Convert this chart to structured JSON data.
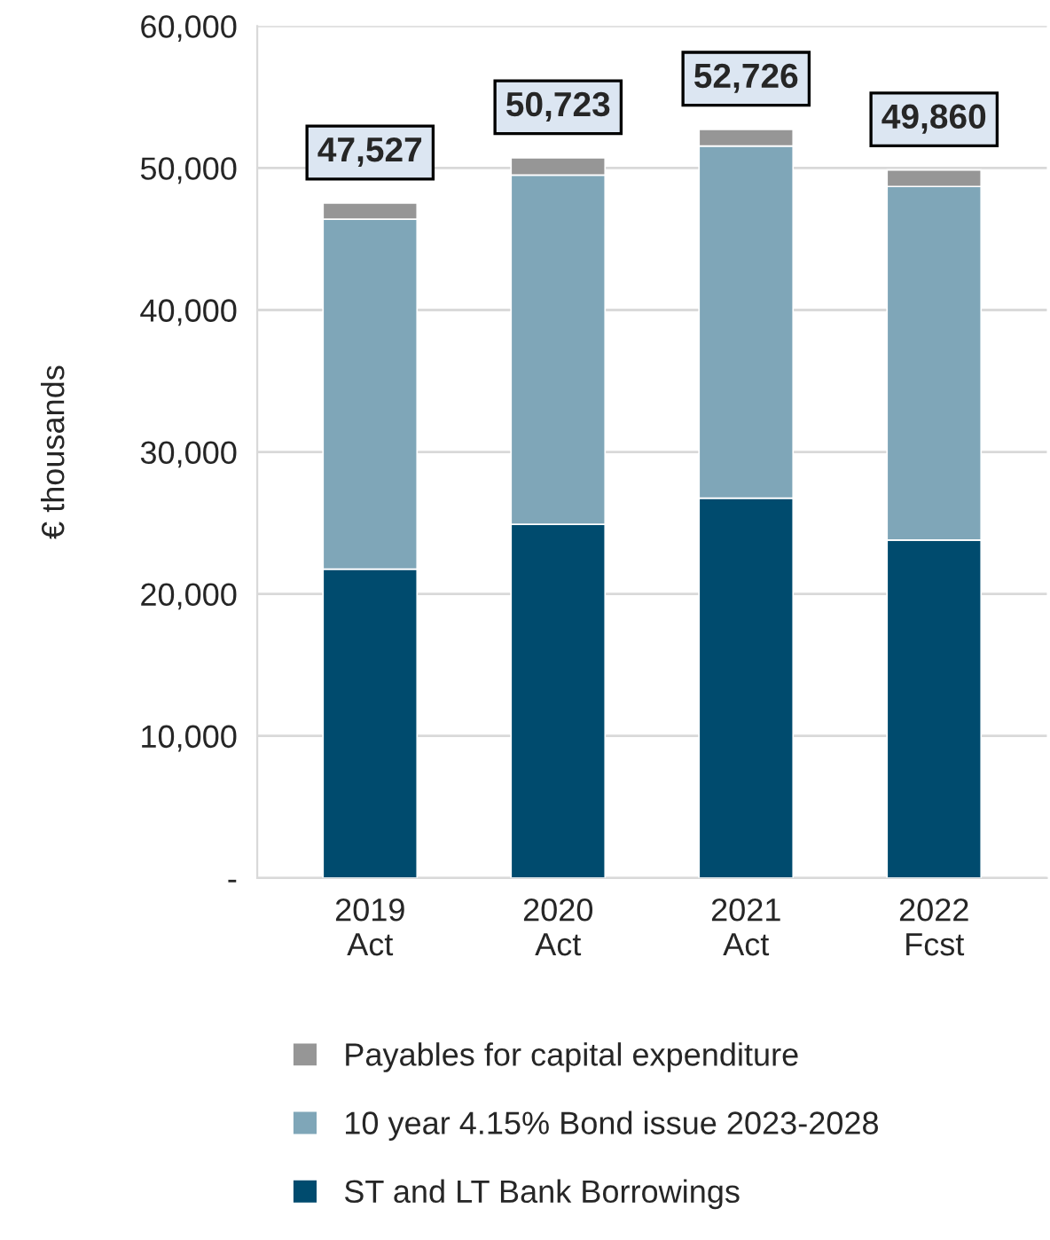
{
  "chart_data": {
    "type": "bar",
    "stacked": true,
    "ylabel": "€ thousands",
    "categories": [
      "2019\nAct",
      "2020\nAct",
      "2021\nAct",
      "2022\nFcst"
    ],
    "series": [
      {
        "name": "ST and LT Bank Borrowings",
        "color": "#004b6e",
        "values": [
          21750,
          24900,
          26750,
          23800
        ]
      },
      {
        "name": "10 year 4.15% Bond issue 2023-2028",
        "color": "#7fa6b8",
        "values": [
          24650,
          24600,
          24800,
          24900
        ]
      },
      {
        "name": "Payables for capital expenditure",
        "color": "#969696",
        "values": [
          1127,
          1223,
          1176,
          1160
        ]
      }
    ],
    "totals": [
      "47,527",
      "50,723",
      "52,726",
      "49,860"
    ],
    "ylim": [
      0,
      60000
    ],
    "yticks": [
      {
        "value": 0,
        "label": "-"
      },
      {
        "value": 10000,
        "label": "10,000"
      },
      {
        "value": 20000,
        "label": "20,000"
      },
      {
        "value": 30000,
        "label": "30,000"
      },
      {
        "value": 40000,
        "label": "40,000"
      },
      {
        "value": 50000,
        "label": "50,000"
      },
      {
        "value": 60000,
        "label": "60,000"
      }
    ],
    "grid": "y",
    "legend": "bottom"
  }
}
